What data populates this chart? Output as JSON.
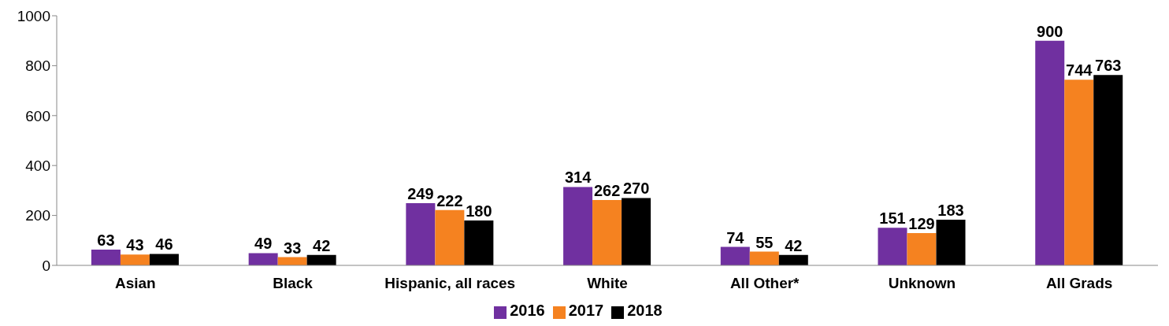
{
  "chart_data": {
    "type": "bar",
    "categories": [
      "Asian",
      "Black",
      "Hispanic, all races",
      "White",
      "All Other*",
      "Unknown",
      "All Grads"
    ],
    "series": [
      {
        "name": "2016",
        "color": "#7030a0",
        "values": [
          63,
          49,
          249,
          314,
          74,
          151,
          900
        ]
      },
      {
        "name": "2017",
        "color": "#f58220",
        "values": [
          43,
          33,
          222,
          262,
          55,
          129,
          744
        ]
      },
      {
        "name": "2018",
        "color": "#000000",
        "values": [
          46,
          42,
          180,
          270,
          42,
          183,
          763
        ]
      }
    ],
    "ylim": [
      0,
      1000
    ],
    "yticks": [
      0,
      200,
      400,
      600,
      800,
      1000
    ],
    "grid": false,
    "legend": "bottom",
    "data_labels": true
  }
}
